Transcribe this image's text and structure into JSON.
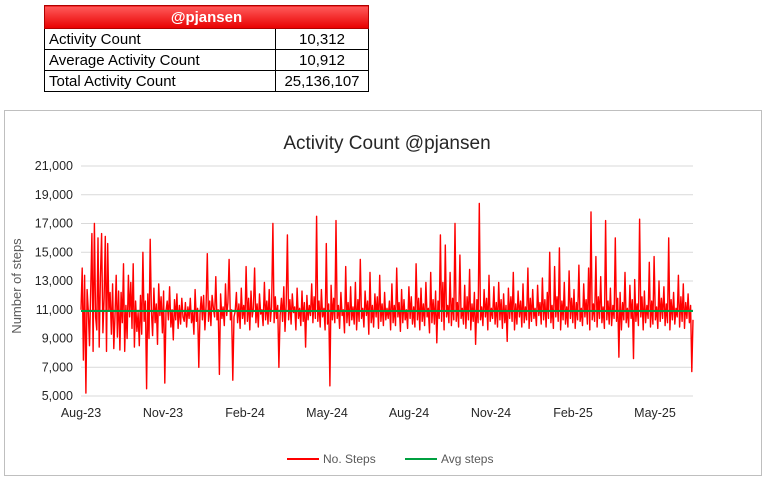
{
  "summary": {
    "title": "@pjansen",
    "rows": [
      {
        "label": "Activity Count",
        "value": "10,312"
      },
      {
        "label": "Average Activity Count",
        "value": "10,912"
      },
      {
        "label": "Total Activity Count",
        "value": "25,136,107"
      }
    ]
  },
  "chart_data": {
    "type": "line",
    "title": "Activity Count @pjansen",
    "xlabel": "",
    "ylabel": "Number of steps",
    "ylim": [
      5000,
      21000
    ],
    "yticks": [
      "5,000",
      "7,000",
      "9,000",
      "11,000",
      "13,000",
      "15,000",
      "17,000",
      "19,000",
      "21,000"
    ],
    "xticks": [
      "Aug-23",
      "Nov-23",
      "Feb-24",
      "May-24",
      "Aug-24",
      "Nov-24",
      "Feb-25",
      "May-25"
    ],
    "x_start": "2023-08-01",
    "x_end": "2025-06-30",
    "grid": true,
    "legend": "bottom",
    "colors": {
      "steps": "#ff0000",
      "avg": "#00a040"
    },
    "series": [
      {
        "name": "No. Steps",
        "approx_values": [
          11000,
          13900,
          7500,
          13400,
          5200,
          12400,
          10900,
          8500,
          12300,
          16300,
          8100,
          17000,
          10500,
          9600,
          16000,
          8400,
          13200,
          16300,
          9400,
          11800,
          16100,
          8100,
          15600,
          10900,
          12200,
          9300,
          12800,
          8300,
          10600,
          13400,
          9100,
          12300,
          8200,
          12200,
          10100,
          14200,
          8100,
          11300,
          9000,
          13400,
          10500,
          12900,
          9700,
          14200,
          8400,
          11600,
          9500,
          10800,
          8500,
          12000,
          9300,
          15000,
          10200,
          11600,
          5500,
          12100,
          9000,
          15900,
          10900,
          9200,
          12500,
          10100,
          11400,
          8600,
          12800,
          10600,
          11900,
          9400,
          12300,
          5900,
          10900,
          11600,
          10300,
          12600,
          9800,
          11000,
          8900,
          11700,
          10300,
          12100,
          9700,
          11300,
          10000,
          11800,
          10500,
          10200,
          11500,
          9800,
          11200,
          10400,
          11800,
          10100,
          10900,
          9300,
          12400,
          10200,
          11100,
          7000,
          10700,
          11900,
          10300,
          12000,
          9600,
          11300,
          14900,
          10200,
          11600,
          9900,
          12000,
          11100,
          10500,
          13300,
          10300,
          11000,
          6500,
          12100,
          10400,
          11200,
          9900,
          12800,
          10600,
          11500,
          14500,
          10300,
          11000,
          6100,
          10500,
          10900,
          12200,
          10100,
          11400,
          9700,
          12500,
          10400,
          11300,
          10000,
          14000,
          10200,
          11800,
          9600,
          12300,
          10500,
          11100,
          13900,
          10100,
          11400,
          9800,
          12100,
          10700,
          11000,
          9900,
          12900,
          10300,
          11600,
          10000,
          12400,
          10200,
          11200,
          17000,
          10100,
          11900,
          10400,
          11300,
          7000,
          10600,
          11800,
          10200,
          12600,
          9500,
          11400,
          16200,
          10300,
          11700,
          10000,
          12100,
          10800,
          11200,
          9600,
          12500,
          10400,
          11100,
          9900,
          12300,
          10200,
          11500,
          8400,
          12000,
          10300,
          11300,
          10600,
          12800,
          10100,
          11900,
          10400,
          17500,
          10200,
          11600,
          9800,
          12400,
          10500,
          11100,
          9600,
          15600,
          10000,
          11400,
          5700,
          12700,
          10300,
          11800,
          10100,
          17200,
          10400,
          11300,
          9700,
          12200,
          10600,
          11000,
          9400,
          14000,
          10100,
          11500,
          9900,
          12600,
          10300,
          11200,
          10000,
          12900,
          9600,
          11700,
          10200,
          14500,
          10400,
          11100,
          9800,
          12300,
          10600,
          11600,
          9300,
          13600,
          10100,
          11300,
          9800,
          12100,
          10500,
          11900,
          9700,
          13400,
          10200,
          11400,
          9900,
          12200,
          10300,
          11100,
          10400,
          11600,
          9600,
          12800,
          10100,
          11300,
          9900,
          13900,
          10500,
          11500,
          9500,
          12400,
          10100,
          11700,
          10300,
          11000,
          9700,
          12600,
          10400,
          11900,
          10000,
          11200,
          9800,
          14200,
          10300,
          11800,
          9600,
          12500,
          10200,
          11400,
          9900,
          12900,
          10500,
          11100,
          9400,
          13600,
          10100,
          11700,
          10000,
          12300,
          8700,
          11600,
          10400,
          16200,
          10200,
          12900,
          9600,
          15500,
          10500,
          11300,
          10100,
          13600,
          9900,
          11800,
          10300,
          17000,
          10200,
          11500,
          9800,
          14800,
          10400,
          11100,
          10000,
          12700,
          9700,
          11900,
          10300,
          13800,
          9600,
          11400,
          10200,
          12200,
          8600,
          11700,
          10100,
          18400,
          10300,
          11200,
          9900,
          12400,
          10500,
          11800,
          9600,
          13400,
          10200,
          11100,
          10400,
          12600,
          10000,
          11500,
          9800,
          12900,
          10300,
          11700,
          9700,
          12100,
          10100,
          11300,
          8800,
          12500,
          10400,
          11900,
          10200,
          13600,
          9600,
          11400,
          10000,
          12300,
          10500,
          11600,
          9800,
          12800,
          10100,
          11200,
          10300,
          13900,
          9700,
          11800,
          10200,
          12400,
          10400,
          11100,
          9900,
          12700,
          10600,
          11500,
          10000,
          13200,
          10300,
          11700,
          9800,
          12200,
          10400,
          15000,
          10100,
          11300,
          9700,
          14000,
          10500,
          11900,
          10200,
          15300,
          9600,
          11600,
          10300,
          12900,
          10000,
          11200,
          9800,
          13700,
          10400,
          11800,
          10100,
          12400,
          9700,
          11500,
          10300,
          14100,
          10200,
          11100,
          9900,
          12800,
          10500,
          11700,
          10000,
          13900,
          9600,
          17800,
          10300,
          11400,
          10200,
          14700,
          9800,
          11900,
          10400,
          13300,
          10100,
          11200,
          9700,
          17200,
          10300,
          11600,
          10000,
          12500,
          9900,
          11300,
          10400,
          16000,
          10200,
          11800,
          7700,
          12200,
          9600,
          11500,
          10300,
          13600,
          10100,
          11100,
          9800,
          12700,
          10400,
          11700,
          7600,
          13100,
          10200,
          11400,
          9900,
          17300,
          10500,
          11900,
          9600,
          12300,
          10100,
          11300,
          10400,
          14300,
          9800,
          11600,
          10000,
          14700,
          10300,
          11200,
          9700,
          13000,
          10200,
          11800,
          10400,
          12600,
          9900,
          11400,
          10100,
          16000,
          9600,
          11700,
          10300,
          12200,
          10000,
          11100,
          10500,
          13400,
          9800,
          11900,
          10200,
          12800,
          9700,
          11500,
          10400,
          12100,
          10100,
          11300,
          6700,
          10300
        ]
      },
      {
        "name": "Avg steps",
        "constant": 10912
      }
    ]
  }
}
